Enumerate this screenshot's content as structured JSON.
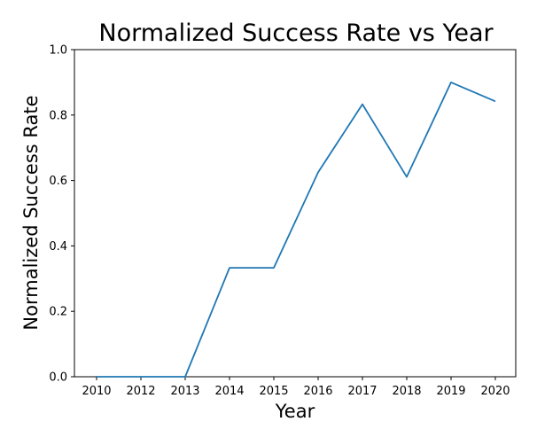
{
  "chart_data": {
    "type": "line",
    "title": "Normalized Success Rate vs Year",
    "xlabel": "Year",
    "ylabel": "Normalized Success Rate",
    "categories": [
      "2010",
      "2012",
      "2013",
      "2014",
      "2015",
      "2016",
      "2017",
      "2018",
      "2019",
      "2020"
    ],
    "series": [
      {
        "values": [
          0.0,
          0.0,
          0.0,
          0.333,
          0.333,
          0.625,
          0.833,
          0.611,
          0.9,
          0.842
        ],
        "color": "#1f77b4"
      }
    ],
    "ylim": [
      0,
      1.0
    ],
    "yticks": [
      "0.0",
      "0.2",
      "0.4",
      "0.6",
      "0.8",
      "1.0"
    ],
    "grid": false,
    "legend": "none"
  }
}
